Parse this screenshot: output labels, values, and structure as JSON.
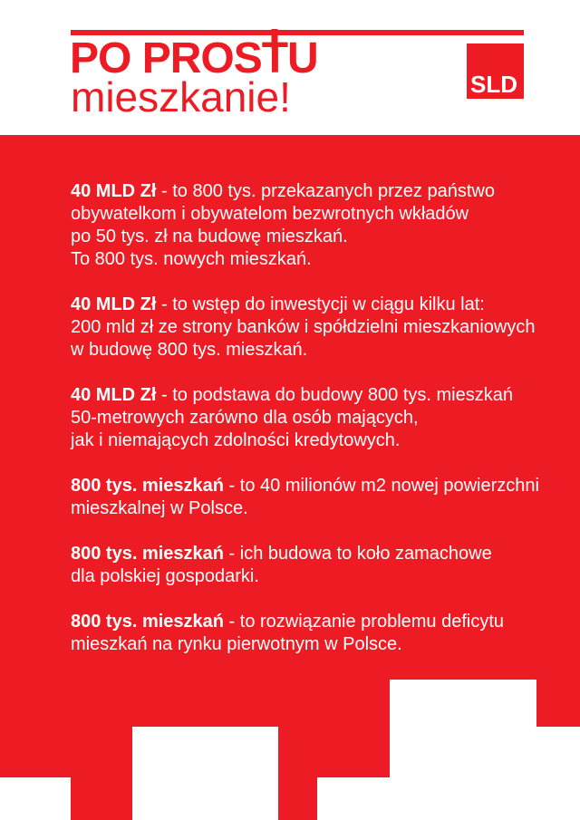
{
  "colors": {
    "red": "#ED1C24",
    "white": "#FFFFFF",
    "text_on_red": "#FFFFFF"
  },
  "header": {
    "title_pre": "PO PROS",
    "title_t": "T",
    "title_post": "U",
    "subtitle": "mieszkanie!",
    "logo_text": "SLD"
  },
  "paragraphs": [
    {
      "lead": "40 MLD Zł",
      "first": " - to 800 tys. przekazanych przez państwo",
      "lines": [
        "obywatelkom i obywatelom bezwrotnych wkładów",
        "po 50 tys. zł na budowę mieszkań.",
        "To 800 tys. nowych mieszkań."
      ]
    },
    {
      "lead": "40 MLD Zł",
      "first": " -  to wstęp do inwestycji w ciągu kilku lat:",
      "lines": [
        "200 mld zł ze strony banków i spółdzielni mieszkaniowych",
        "w budowę 800 tys. mieszkań."
      ]
    },
    {
      "lead": "40 MLD Zł",
      "first": " - to podstawa do budowy 800 tys. mieszkań",
      "lines": [
        "50-metrowych zarówno dla osób mających,",
        "jak i niemających zdolności kredytowych."
      ]
    },
    {
      "lead": "800 tys. mieszkań",
      "first": " - to 40 milionów m2 nowej powierzchni",
      "lines": [
        "mieszkalnej w Polsce."
      ]
    },
    {
      "lead": "800 tys. mieszkań",
      "first": " - ich budowa to koło zamachowe",
      "lines": [
        "dla polskiej gospodarki."
      ]
    },
    {
      "lead": "800 tys. mieszkań",
      "first": " - to rozwiązanie problemu deficytu",
      "lines": [
        "mieszkań na rynku pierwotnym w Polsce."
      ]
    }
  ]
}
